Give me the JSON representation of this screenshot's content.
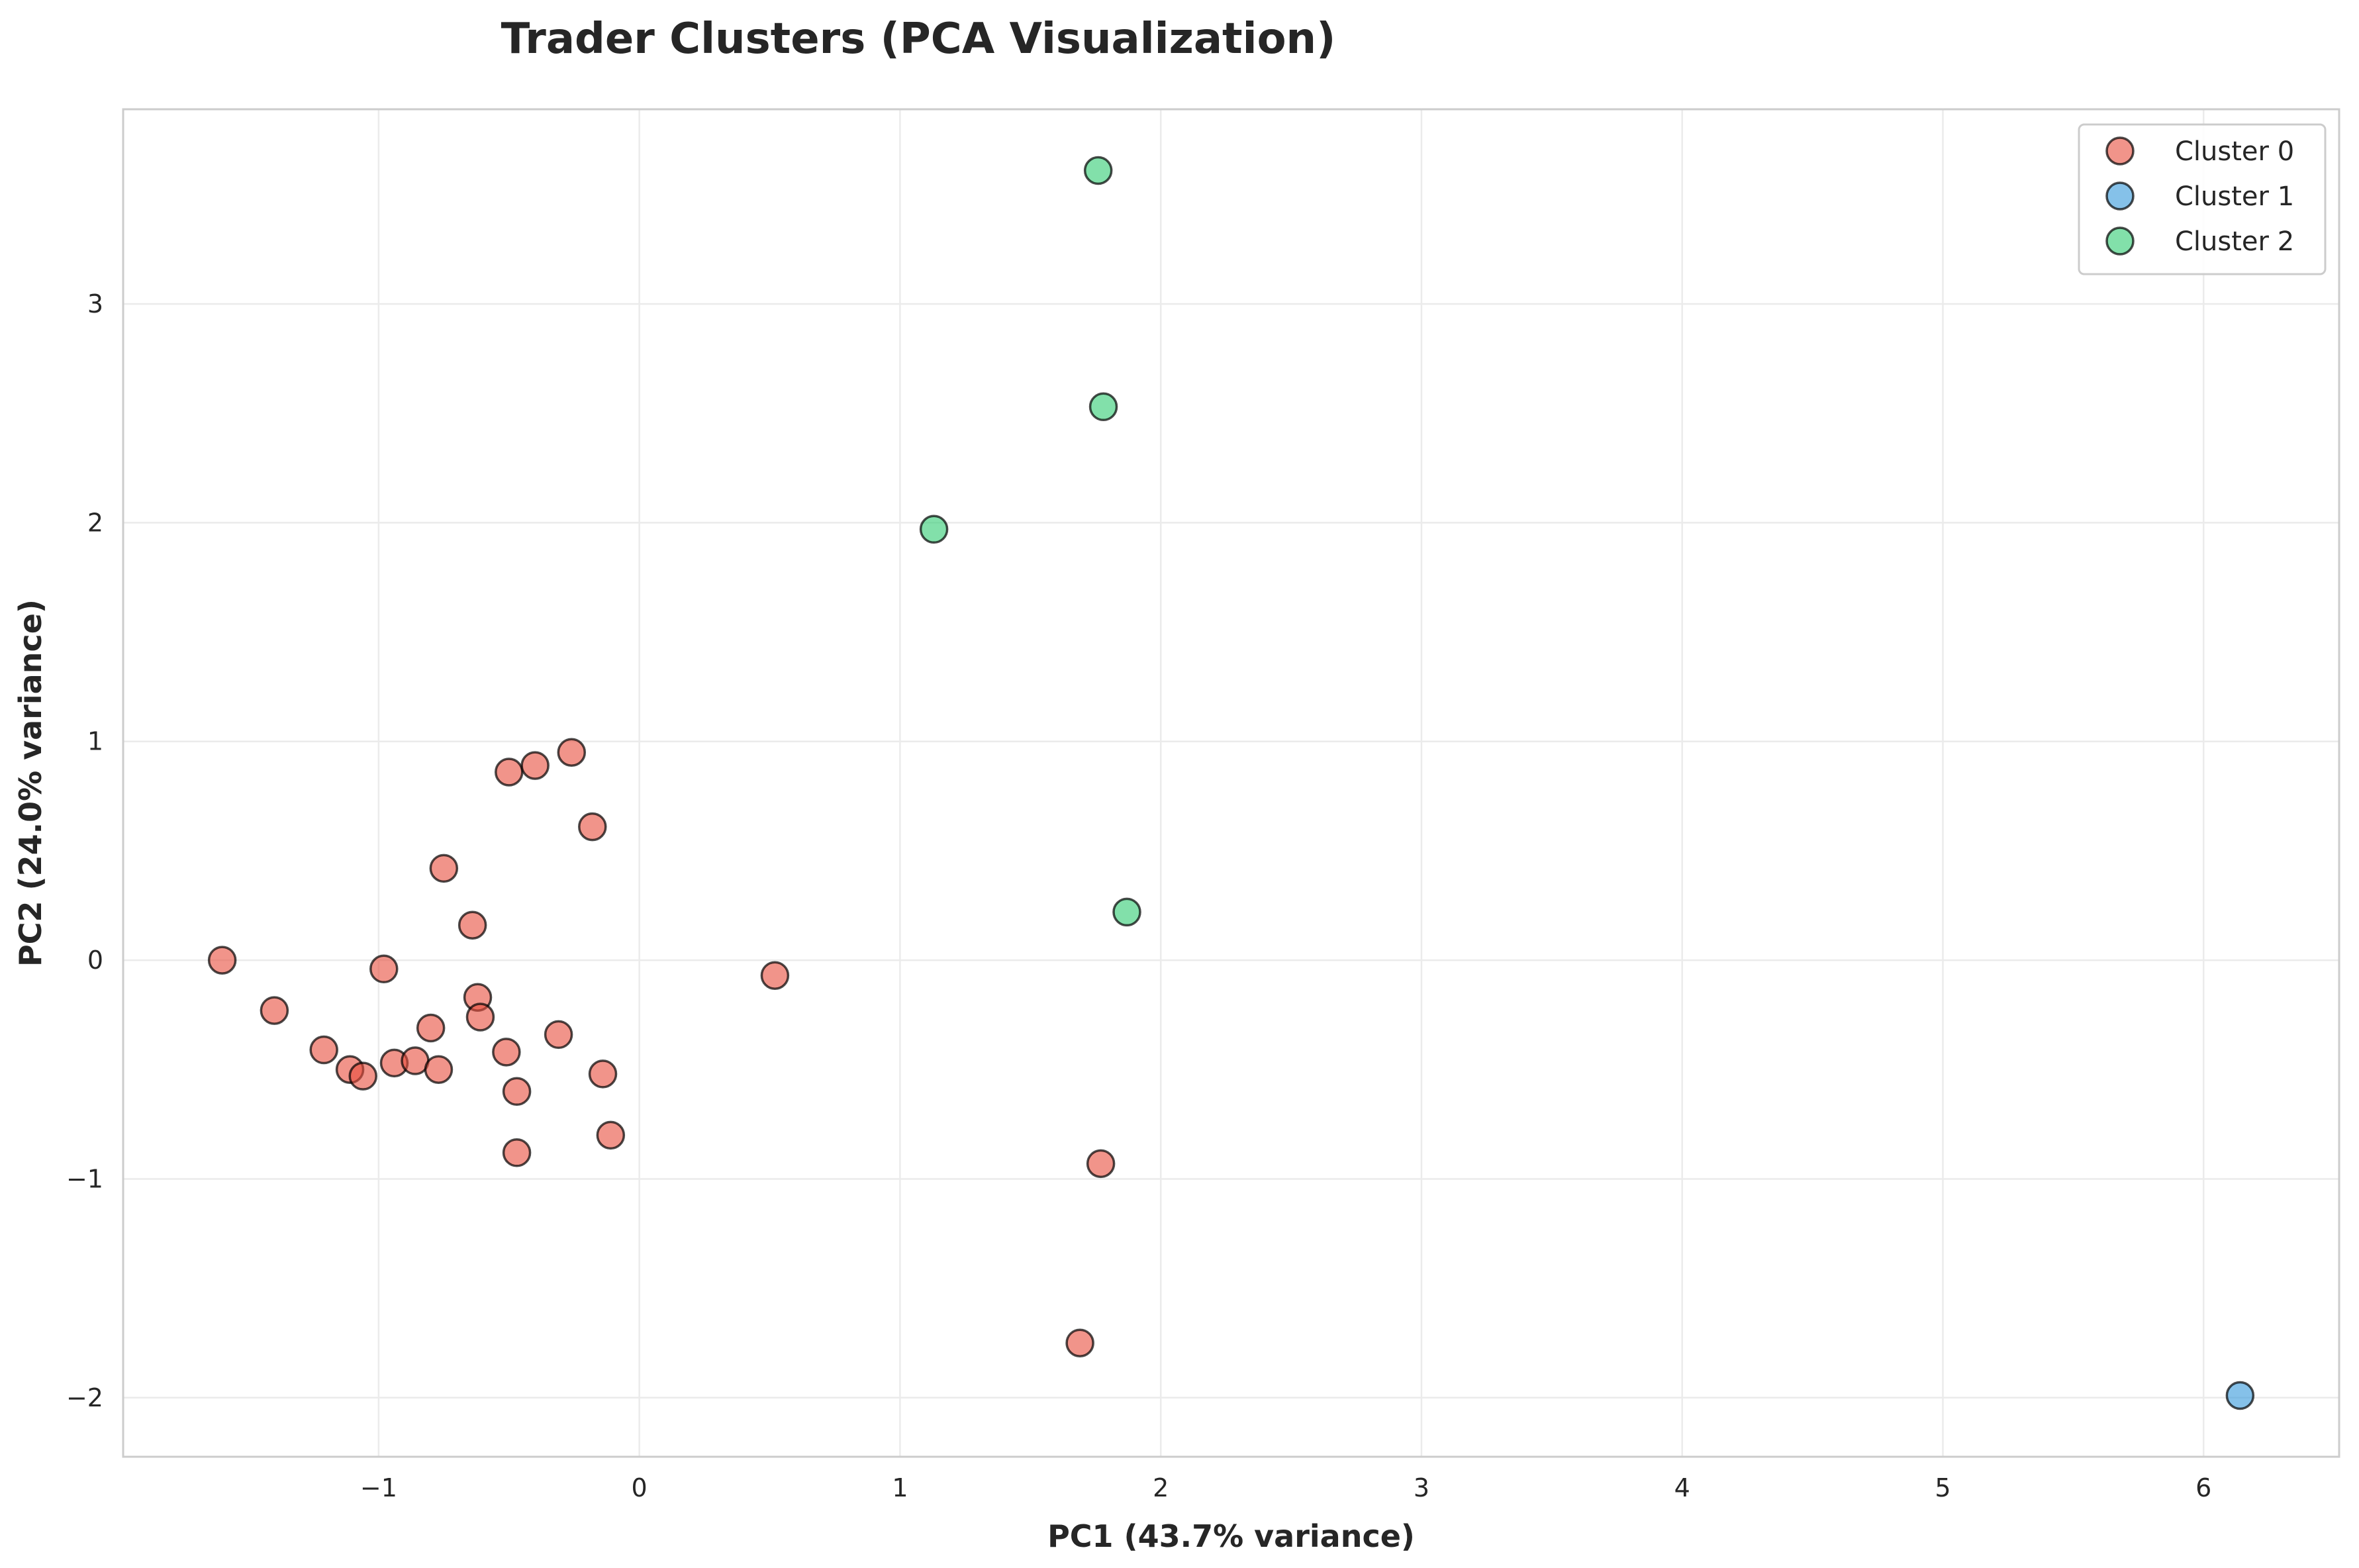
{
  "chart_data": {
    "type": "scatter",
    "title": "Trader Clusters (PCA Visualization)",
    "xlabel": "PC1 (43.7% variance)",
    "ylabel": "PC2 (24.0% variance)",
    "xlim": [
      -1.98,
      6.52
    ],
    "ylim": [
      -2.27,
      3.89
    ],
    "xticks": [
      -1,
      0,
      1,
      2,
      3,
      4,
      5,
      6
    ],
    "yticks": [
      -2,
      -1,
      0,
      1,
      2,
      3
    ],
    "xtick_labels": [
      "−1",
      "0",
      "1",
      "2",
      "3",
      "4",
      "5",
      "6"
    ],
    "ytick_labels": [
      "−2",
      "−1",
      "0",
      "1",
      "2",
      "3"
    ],
    "grid": true,
    "legend_position": "top-right",
    "series": [
      {
        "name": "Cluster 0",
        "color": "#e74c3c",
        "points": [
          [
            -1.6,
            0.0
          ],
          [
            -1.4,
            -0.23
          ],
          [
            -1.21,
            -0.41
          ],
          [
            -1.11,
            -0.5
          ],
          [
            -1.06,
            -0.53
          ],
          [
            -0.98,
            -0.04
          ],
          [
            -0.94,
            -0.47
          ],
          [
            -0.86,
            -0.46
          ],
          [
            -0.8,
            -0.31
          ],
          [
            -0.77,
            -0.5
          ],
          [
            -0.75,
            0.42
          ],
          [
            -0.64,
            0.16
          ],
          [
            -0.62,
            -0.17
          ],
          [
            -0.61,
            -0.26
          ],
          [
            -0.51,
            -0.42
          ],
          [
            -0.5,
            0.86
          ],
          [
            -0.47,
            -0.6
          ],
          [
            -0.47,
            -0.88
          ],
          [
            -0.4,
            0.89
          ],
          [
            -0.31,
            -0.34
          ],
          [
            -0.26,
            0.95
          ],
          [
            -0.18,
            0.61
          ],
          [
            -0.14,
            -0.52
          ],
          [
            -0.11,
            -0.8
          ],
          [
            0.52,
            -0.07
          ],
          [
            1.69,
            -1.75
          ],
          [
            1.77,
            -0.93
          ]
        ]
      },
      {
        "name": "Cluster 1",
        "color": "#3498db",
        "points": [
          [
            6.14,
            -1.99
          ]
        ]
      },
      {
        "name": "Cluster 2",
        "color": "#2ecc71",
        "points": [
          [
            1.13,
            1.97
          ],
          [
            1.76,
            3.61
          ],
          [
            1.78,
            2.53
          ],
          [
            1.87,
            0.22
          ]
        ]
      }
    ]
  }
}
